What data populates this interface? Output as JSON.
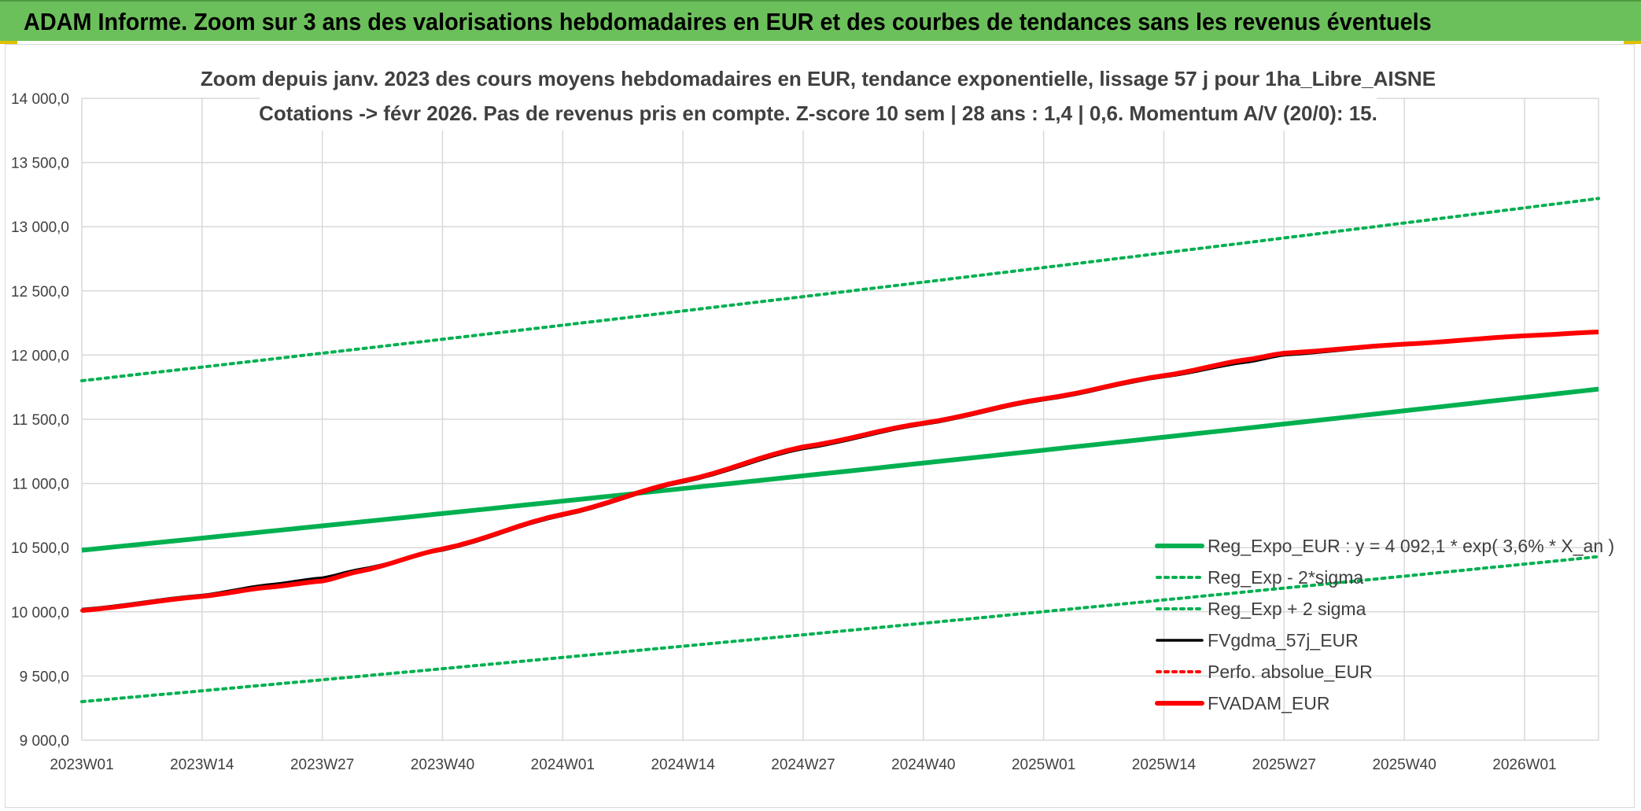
{
  "header": {
    "title": "ADAM Informe. Zoom sur 3 ans des valorisations hebdomadaires en EUR et des courbes de tendances sans les revenus éventuels"
  },
  "colors": {
    "header_bg": "#6cc05b",
    "trend": "#00b050",
    "dotted": "#00b050",
    "fv57": "#000000",
    "perfo": "#ff0000",
    "fvadam": "#ff0000"
  },
  "chart_data": {
    "type": "line",
    "title": [
      "Zoom depuis janv. 2023 des cours moyens hebdomadaires en EUR, tendance exponentielle, lissage 57 j pour 1ha_Libre_AISNE",
      "Cotations -> févr 2026. Pas de revenus pris en compte. Z-score 10 sem | 28 ans : 1,4 | 0,6. Momentum A/V (20/0): 15."
    ],
    "x_tick_labels": [
      "2023W01",
      "2023W14",
      "2023W27",
      "2023W40",
      "2024W01",
      "2024W14",
      "2024W27",
      "2024W40",
      "2025W01",
      "2025W14",
      "2025W27",
      "2025W40",
      "2026W01"
    ],
    "x_range_weeks": [
      0,
      164
    ],
    "y_ticks": [
      "14 000,0",
      "13 500,0",
      "13 000,0",
      "12 500,0",
      "12 000,0",
      "11 500,0",
      "11 000,0",
      "10 500,0",
      "10 000,0",
      "9 500,0",
      "9 000,0"
    ],
    "ylim": [
      9000,
      14000
    ],
    "grid": true,
    "legend_position": "bottom-right",
    "series": [
      {
        "name": "Reg_Expo_EUR : y = 4 092,1 * exp( 3,6% *  X_an )",
        "style": "solid-thick",
        "color": "#00b050",
        "x": [
          0,
          164
        ],
        "values": [
          10480,
          11735
        ],
        "curve": "exponential"
      },
      {
        "name": "Reg_Exp - 2*sigma",
        "style": "dotted",
        "color": "#00b050",
        "x": [
          0,
          164
        ],
        "values": [
          9300,
          10430
        ],
        "curve": "exponential"
      },
      {
        "name": "Reg_Exp + 2 sigma",
        "style": "dotted",
        "color": "#00b050",
        "x": [
          0,
          164
        ],
        "values": [
          11800,
          13220
        ],
        "curve": "exponential"
      },
      {
        "name": "FVgdma_57j_EUR",
        "style": "solid",
        "color": "#000000",
        "x": [
          0,
          13,
          20,
          26,
          30,
          39,
          52,
          65,
          78,
          91,
          104,
          117,
          126,
          130,
          143,
          156,
          164
        ],
        "values": [
          10020,
          10130,
          10210,
          10265,
          10330,
          10480,
          10750,
          11010,
          11270,
          11460,
          11650,
          11830,
          11945,
          12000,
          12080,
          12145,
          12175
        ]
      },
      {
        "name": "Perfo. absolue_EUR",
        "style": "dotted",
        "color": "#ff0000",
        "x": [
          0,
          13,
          20,
          26,
          30,
          39,
          52,
          65,
          78,
          91,
          104,
          117,
          126,
          130,
          143,
          156,
          164
        ],
        "values": [
          10010,
          10120,
          10190,
          10240,
          10315,
          10490,
          10760,
          11020,
          11285,
          11470,
          11660,
          11840,
          11965,
          12015,
          12085,
          12150,
          12180
        ]
      },
      {
        "name": "FVADAM_EUR",
        "style": "solid-thick",
        "color": "#ff0000",
        "x": [
          0,
          13,
          20,
          26,
          30,
          39,
          52,
          65,
          78,
          91,
          104,
          117,
          126,
          130,
          143,
          156,
          164
        ],
        "values": [
          10010,
          10120,
          10190,
          10240,
          10315,
          10490,
          10760,
          11020,
          11285,
          11470,
          11660,
          11840,
          11965,
          12015,
          12085,
          12150,
          12180
        ]
      }
    ]
  }
}
